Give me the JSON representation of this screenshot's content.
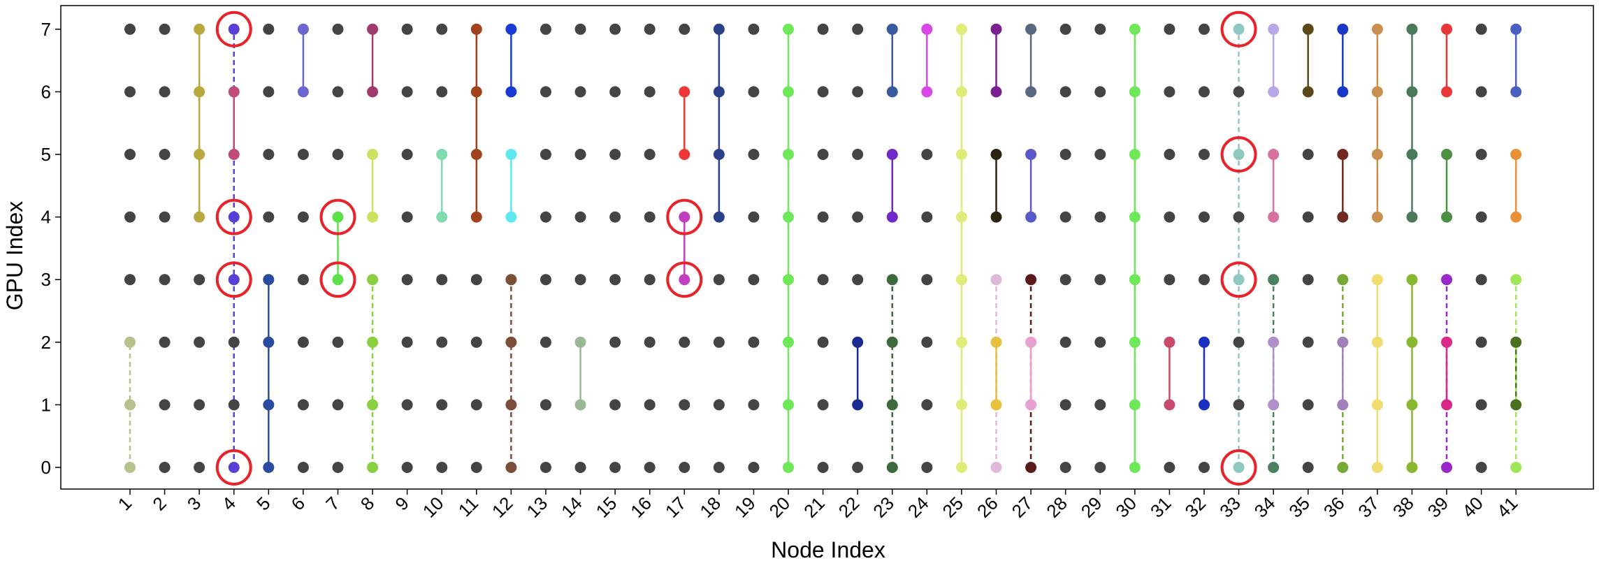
{
  "chart_data": {
    "type": "scatter",
    "xlabel": "Node Index",
    "ylabel": "GPU Index",
    "x_ticks": [
      "1",
      "2",
      "3",
      "4",
      "5",
      "6",
      "7",
      "8",
      "9",
      "10",
      "11",
      "12",
      "13",
      "14",
      "15",
      "16",
      "17",
      "18",
      "19",
      "20",
      "21",
      "22",
      "23",
      "24",
      "25",
      "26",
      "27",
      "28",
      "29",
      "30",
      "31",
      "32",
      "33",
      "34",
      "35",
      "36",
      "37",
      "38",
      "39",
      "40",
      "41"
    ],
    "y_ticks": [
      "0",
      "1",
      "2",
      "3",
      "4",
      "5",
      "6",
      "7"
    ],
    "ylim": [
      -0.35,
      7.35
    ],
    "xlim": [
      0,
      42
    ],
    "grid": false,
    "default_point_color": "#444444",
    "highlight_color": "#e8232a",
    "groups": [
      {
        "node": 1,
        "gpus": [
          0,
          1,
          2
        ],
        "color": "#b5c28c",
        "style": "dashed"
      },
      {
        "node": 3,
        "gpus": [
          4,
          5,
          6,
          7
        ],
        "color": "#b8a93e",
        "style": "solid"
      },
      {
        "node": 4,
        "gpus": [
          0,
          3,
          4,
          7
        ],
        "color": "#5a3fd6",
        "style": "dashed"
      },
      {
        "node": 4,
        "gpus": [
          5,
          6
        ],
        "color": "#c04a78",
        "style": "solid"
      },
      {
        "node": 5,
        "gpus": [
          0,
          1,
          2,
          3
        ],
        "color": "#2a4ca0",
        "style": "solid"
      },
      {
        "node": 6,
        "gpus": [
          6,
          7
        ],
        "color": "#6b66d0",
        "style": "solid"
      },
      {
        "node": 7,
        "gpus": [
          3,
          4
        ],
        "color": "#5ee04a",
        "style": "solid"
      },
      {
        "node": 8,
        "gpus": [
          6,
          7
        ],
        "color": "#a03a6a",
        "style": "solid"
      },
      {
        "node": 8,
        "gpus": [
          4,
          5
        ],
        "color": "#cde060",
        "style": "solid"
      },
      {
        "node": 8,
        "gpus": [
          0,
          1,
          2,
          3
        ],
        "color": "#88d040",
        "style": "dashed"
      },
      {
        "node": 10,
        "gpus": [
          4,
          5
        ],
        "color": "#80dcb0",
        "style": "solid"
      },
      {
        "node": 11,
        "gpus": [
          4,
          5,
          6,
          7
        ],
        "color": "#a0421c",
        "style": "solid"
      },
      {
        "node": 12,
        "gpus": [
          6,
          7
        ],
        "color": "#1a3ad6",
        "style": "solid"
      },
      {
        "node": 12,
        "gpus": [
          4,
          5
        ],
        "color": "#60e8f0",
        "style": "solid"
      },
      {
        "node": 12,
        "gpus": [
          0,
          1,
          2,
          3
        ],
        "color": "#7a4e38",
        "style": "dashed"
      },
      {
        "node": 14,
        "gpus": [
          1,
          2
        ],
        "color": "#9ab896",
        "style": "solid"
      },
      {
        "node": 17,
        "gpus": [
          5,
          6
        ],
        "color": "#ee3838",
        "style": "solid"
      },
      {
        "node": 17,
        "gpus": [
          3,
          4
        ],
        "color": "#c040c0",
        "style": "solid"
      },
      {
        "node": 18,
        "gpus": [
          4,
          5,
          6,
          7
        ],
        "color": "#2a4088",
        "style": "solid"
      },
      {
        "node": 20,
        "gpus": [
          0,
          1,
          2,
          3,
          4,
          5,
          6,
          7
        ],
        "color": "#6ee858",
        "style": "solid"
      },
      {
        "node": 22,
        "gpus": [
          1,
          2
        ],
        "color": "#1a2a90",
        "style": "solid"
      },
      {
        "node": 23,
        "gpus": [
          6,
          7
        ],
        "color": "#3a5aa0",
        "style": "solid"
      },
      {
        "node": 23,
        "gpus": [
          4,
          5
        ],
        "color": "#7028c8",
        "style": "solid"
      },
      {
        "node": 23,
        "gpus": [
          0,
          1,
          2,
          3
        ],
        "color": "#3c6a3c",
        "style": "dashed"
      },
      {
        "node": 24,
        "gpus": [
          6,
          7
        ],
        "color": "#d848e8",
        "style": "solid"
      },
      {
        "node": 25,
        "gpus": [
          0,
          1,
          2,
          3,
          4,
          5,
          6,
          7
        ],
        "color": "#e0ec78",
        "style": "solid"
      },
      {
        "node": 26,
        "gpus": [
          6,
          7
        ],
        "color": "#7a2090",
        "style": "solid"
      },
      {
        "node": 26,
        "gpus": [
          4,
          5
        ],
        "color": "#2a2410",
        "style": "solid"
      },
      {
        "node": 26,
        "gpus": [
          0,
          3
        ],
        "color": "#e0b8d8",
        "style": "dashed"
      },
      {
        "node": 26,
        "gpus": [
          1,
          2
        ],
        "color": "#e8c040",
        "style": "solid"
      },
      {
        "node": 27,
        "gpus": [
          6,
          7
        ],
        "color": "#586880",
        "style": "solid"
      },
      {
        "node": 27,
        "gpus": [
          4,
          5
        ],
        "color": "#5858c8",
        "style": "solid"
      },
      {
        "node": 27,
        "gpus": [
          0,
          3
        ],
        "color": "#5a1a1a",
        "style": "dashed"
      },
      {
        "node": 27,
        "gpus": [
          1,
          2
        ],
        "color": "#e8a0d0",
        "style": "solid"
      },
      {
        "node": 30,
        "gpus": [
          0,
          1,
          2,
          3,
          4,
          5,
          6,
          7
        ],
        "color": "#6ee858",
        "style": "solid"
      },
      {
        "node": 31,
        "gpus": [
          1,
          2
        ],
        "color": "#c84a6a",
        "style": "solid"
      },
      {
        "node": 32,
        "gpus": [
          1,
          2
        ],
        "color": "#1a30c0",
        "style": "solid"
      },
      {
        "node": 33,
        "gpus": [
          0,
          3,
          5,
          7
        ],
        "color": "#8ec8c0",
        "style": "dashed"
      },
      {
        "node": 34,
        "gpus": [
          6,
          7
        ],
        "color": "#b8a8e8",
        "style": "solid"
      },
      {
        "node": 34,
        "gpus": [
          4,
          5
        ],
        "color": "#d870a0",
        "style": "solid"
      },
      {
        "node": 34,
        "gpus": [
          0,
          3
        ],
        "color": "#4a8060",
        "style": "dashed"
      },
      {
        "node": 34,
        "gpus": [
          1,
          2
        ],
        "color": "#b090c8",
        "style": "solid"
      },
      {
        "node": 35,
        "gpus": [
          6,
          7
        ],
        "color": "#5a4818",
        "style": "solid"
      },
      {
        "node": 36,
        "gpus": [
          6,
          7
        ],
        "color": "#1a38c8",
        "style": "solid"
      },
      {
        "node": 36,
        "gpus": [
          4,
          5
        ],
        "color": "#702820",
        "style": "solid"
      },
      {
        "node": 36,
        "gpus": [
          0,
          3
        ],
        "color": "#78a838",
        "style": "dashed"
      },
      {
        "node": 36,
        "gpus": [
          1,
          2
        ],
        "color": "#a080b8",
        "style": "solid"
      },
      {
        "node": 37,
        "gpus": [
          4,
          5,
          6,
          7
        ],
        "color": "#c8904e",
        "style": "solid"
      },
      {
        "node": 37,
        "gpus": [
          0,
          1,
          2,
          3
        ],
        "color": "#f0dc70",
        "style": "solid"
      },
      {
        "node": 38,
        "gpus": [
          4,
          5,
          6,
          7
        ],
        "color": "#4a7a58",
        "style": "solid"
      },
      {
        "node": 38,
        "gpus": [
          0,
          1,
          2,
          3
        ],
        "color": "#88b830",
        "style": "solid"
      },
      {
        "node": 39,
        "gpus": [
          6,
          7
        ],
        "color": "#e83838",
        "style": "solid"
      },
      {
        "node": 39,
        "gpus": [
          4,
          5
        ],
        "color": "#4a9040",
        "style": "solid"
      },
      {
        "node": 39,
        "gpus": [
          0,
          3
        ],
        "color": "#9a28c8",
        "style": "dashed"
      },
      {
        "node": 39,
        "gpus": [
          1,
          2
        ],
        "color": "#d82888",
        "style": "solid"
      },
      {
        "node": 41,
        "gpus": [
          6,
          7
        ],
        "color": "#4a60c0",
        "style": "solid"
      },
      {
        "node": 41,
        "gpus": [
          4,
          5
        ],
        "color": "#e89038",
        "style": "solid"
      },
      {
        "node": 41,
        "gpus": [
          0,
          3
        ],
        "color": "#9ee858",
        "style": "dashed"
      },
      {
        "node": 41,
        "gpus": [
          1,
          2
        ],
        "color": "#4a7020",
        "style": "dashed"
      }
    ],
    "highlighted_points": [
      {
        "node": 4,
        "gpu": 7
      },
      {
        "node": 4,
        "gpu": 4
      },
      {
        "node": 4,
        "gpu": 3
      },
      {
        "node": 4,
        "gpu": 0
      },
      {
        "node": 7,
        "gpu": 4
      },
      {
        "node": 7,
        "gpu": 3
      },
      {
        "node": 17,
        "gpu": 4
      },
      {
        "node": 17,
        "gpu": 3
      },
      {
        "node": 33,
        "gpu": 7
      },
      {
        "node": 33,
        "gpu": 5
      },
      {
        "node": 33,
        "gpu": 3
      },
      {
        "node": 33,
        "gpu": 0
      }
    ]
  }
}
